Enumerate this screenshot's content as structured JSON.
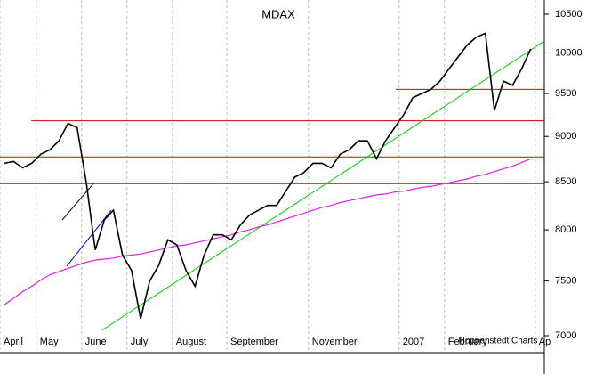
{
  "chart_data": {
    "type": "line",
    "title": "MDAX",
    "annotation": "Hoppenstedt Charts",
    "log_scale": true,
    "ylim": [
      6860,
      10690
    ],
    "yticks": [
      7000,
      7500,
      8000,
      8500,
      9000,
      9500,
      10000,
      10500
    ],
    "categories": [
      "April",
      null,
      null,
      null,
      "May",
      null,
      null,
      null,
      null,
      "June",
      null,
      null,
      null,
      null,
      "July",
      null,
      null,
      null,
      null,
      "August",
      null,
      null,
      null,
      null,
      null,
      "September",
      null,
      null,
      null,
      null,
      null,
      null,
      null,
      null,
      "November",
      null,
      null,
      null,
      null,
      null,
      null,
      null,
      null,
      null,
      "2007",
      null,
      null,
      null,
      null,
      "February",
      null,
      null,
      null,
      null,
      null,
      null,
      null,
      null,
      null,
      "Ap"
    ],
    "series": [
      {
        "name": "MDAX",
        "color": "#000000",
        "values": [
          8700,
          8720,
          8650,
          8700,
          8800,
          8850,
          8950,
          9150,
          9100,
          8500,
          7800,
          8100,
          8200,
          7750,
          7600,
          7150,
          7500,
          7650,
          7900,
          7850,
          7600,
          7450,
          7750,
          7950,
          7950,
          7900,
          8050,
          8150,
          8200,
          8250,
          8250,
          8400,
          8550,
          8600,
          8700,
          8700,
          8650,
          8800,
          8850,
          8950,
          8950,
          8750,
          8950,
          9100,
          9250,
          9450,
          9500,
          9550,
          9650,
          9800,
          9950,
          10100,
          10200,
          10250,
          9300,
          9650,
          9600,
          9800,
          10050,
          null
        ]
      },
      {
        "name": "Moving average",
        "color": "#e020e0",
        "values": [
          7280,
          7340,
          7400,
          7450,
          7510,
          7560,
          7590,
          7620,
          7650,
          7680,
          7700,
          7710,
          7720,
          7740,
          7750,
          7760,
          7780,
          7800,
          7820,
          7840,
          7850,
          7870,
          7890,
          7910,
          7930,
          7950,
          7980,
          8000,
          8030,
          8050,
          8080,
          8110,
          8140,
          8170,
          8200,
          8230,
          8250,
          8280,
          8300,
          8320,
          8340,
          8360,
          8370,
          8390,
          8400,
          8420,
          8440,
          8450,
          8470,
          8490,
          8510,
          8530,
          8560,
          8580,
          8610,
          8640,
          8670,
          8710,
          8750,
          null
        ]
      }
    ],
    "levels": {
      "color": "#d00000",
      "values": [
        9550,
        9180,
        8770,
        8480
      ]
    },
    "trendlines": [
      {
        "color": "#00cc00",
        "values": [
          7050,
          10150
        ]
      },
      {
        "color": "#0000ff",
        "values": [
          7640,
          8200
        ]
      },
      {
        "color": "#000000",
        "values": [
          8100,
          8480
        ]
      }
    ]
  }
}
